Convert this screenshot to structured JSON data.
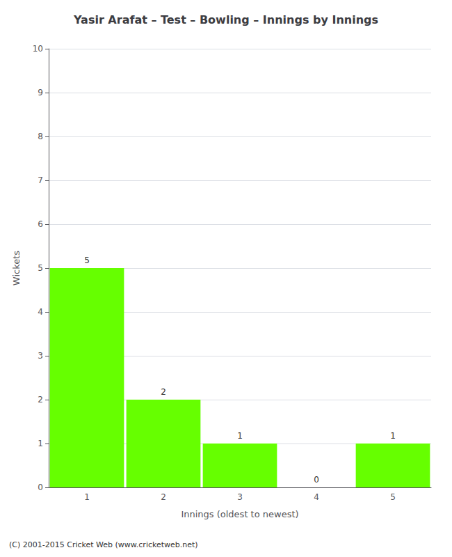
{
  "chart_data": {
    "type": "bar",
    "title": "Yasir Arafat – Test – Bowling – Innings by Innings",
    "xlabel": "Innings (oldest to newest)",
    "ylabel": "Wickets",
    "categories": [
      "1",
      "2",
      "3",
      "4",
      "5"
    ],
    "values": [
      5,
      2,
      1,
      0,
      1
    ],
    "color": "#66ff00",
    "ylim": [
      0,
      10
    ],
    "yticks": [
      0,
      1,
      2,
      3,
      4,
      5,
      6,
      7,
      8,
      9,
      10
    ],
    "grid": true,
    "data_labels": true,
    "footer": "(C) 2001-2015 Cricket Web (www.cricketweb.net)"
  }
}
